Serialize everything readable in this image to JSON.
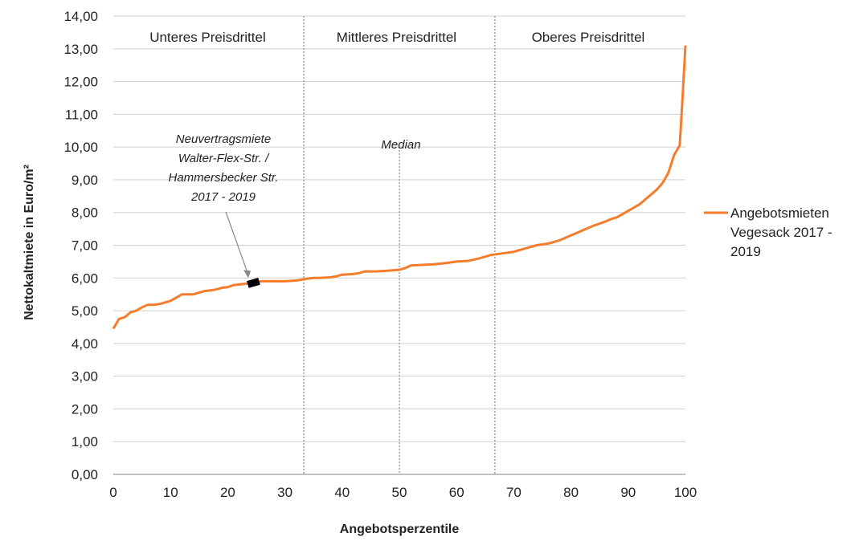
{
  "chart_data": {
    "type": "line",
    "xlabel": "Angebotsperzentile",
    "ylabel": "Nettokaltmiete in Euro/m²",
    "xlim": [
      0,
      100
    ],
    "ylim": [
      0,
      14
    ],
    "x_ticks": [
      "0",
      "10",
      "20",
      "30",
      "40",
      "50",
      "60",
      "70",
      "80",
      "90",
      "100"
    ],
    "y_ticks": [
      "0,00",
      "1,00",
      "2,00",
      "3,00",
      "4,00",
      "5,00",
      "6,00",
      "7,00",
      "8,00",
      "9,00",
      "10,00",
      "11,00",
      "12,00",
      "13,00",
      "14,00"
    ],
    "grid": "horizontal",
    "legend_position": "right",
    "section_labels": [
      {
        "text": "Unteres Preisdrittel",
        "x_center": 16.5
      },
      {
        "text": "Mittleres Preisdrittel",
        "x_center": 49.5
      },
      {
        "text": "Oberes Preisdrittel",
        "x_center": 83
      }
    ],
    "dividers": [
      33.3,
      66.7
    ],
    "median_line": {
      "x": 50,
      "label": "Median"
    },
    "annotation": {
      "lines": [
        "Neuvertragsmiete",
        "Walter-Flex-Str. /",
        "Hammersbecker Str.",
        "2017 -  2019"
      ],
      "range": [
        23.5,
        25.5
      ],
      "y": 5.85
    },
    "series": [
      {
        "name": "Angebotsmieten Vegesack 2017 - 2019",
        "legend_lines": [
          "Angebotsmieten",
          "Vegesack 2017 -",
          "2019"
        ],
        "color": "#f47c2a",
        "x": [
          0,
          0.5,
          1,
          2,
          3,
          4,
          5,
          6,
          7,
          8,
          9,
          10,
          11,
          12,
          13,
          14,
          15,
          16,
          17,
          18,
          19,
          20,
          21,
          22,
          23,
          24,
          25,
          26,
          28,
          30,
          32,
          33,
          34,
          35,
          36,
          38,
          39,
          40,
          42,
          43,
          44,
          46,
          48,
          50,
          51,
          52,
          54,
          56,
          58,
          60,
          62,
          64,
          66,
          68,
          70,
          71,
          72,
          74,
          76,
          78,
          80,
          82,
          84,
          86,
          87,
          88,
          89,
          90,
          92,
          93,
          94,
          95,
          96,
          97,
          98,
          99,
          99.5,
          100
        ],
        "values": [
          4.45,
          4.6,
          4.75,
          4.8,
          4.95,
          5.0,
          5.1,
          5.18,
          5.18,
          5.2,
          5.25,
          5.3,
          5.4,
          5.5,
          5.5,
          5.5,
          5.55,
          5.6,
          5.62,
          5.65,
          5.7,
          5.72,
          5.78,
          5.8,
          5.82,
          5.85,
          5.88,
          5.9,
          5.9,
          5.9,
          5.92,
          5.95,
          5.98,
          6.0,
          6.0,
          6.02,
          6.05,
          6.1,
          6.12,
          6.15,
          6.2,
          6.2,
          6.22,
          6.25,
          6.3,
          6.38,
          6.4,
          6.42,
          6.45,
          6.5,
          6.52,
          6.6,
          6.7,
          6.75,
          6.8,
          6.85,
          6.9,
          7.0,
          7.05,
          7.15,
          7.3,
          7.45,
          7.6,
          7.72,
          7.8,
          7.85,
          7.95,
          8.05,
          8.25,
          8.4,
          8.55,
          8.7,
          8.9,
          9.2,
          9.75,
          10.05,
          11.5,
          13.1
        ]
      }
    ]
  }
}
